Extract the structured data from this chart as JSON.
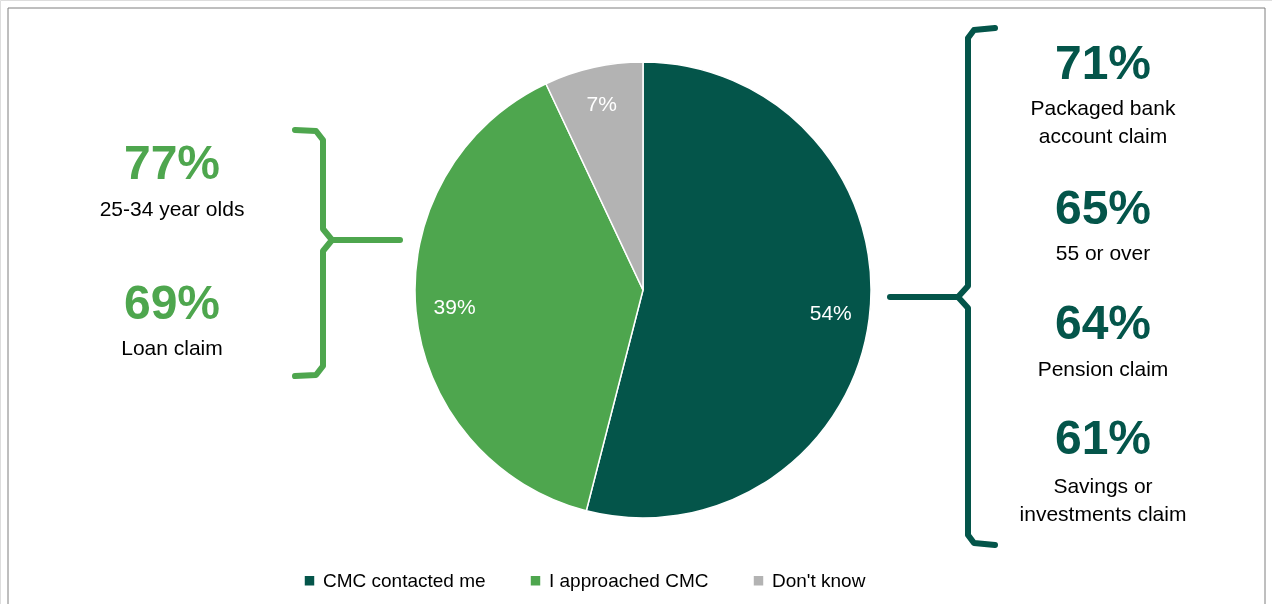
{
  "chart_data": {
    "type": "pie",
    "categories": [
      "CMC contacted me",
      "I approached CMC",
      "Don't know"
    ],
    "values": [
      54,
      39,
      7
    ],
    "value_labels": [
      "54%",
      "39%",
      "7%"
    ],
    "colors": [
      "#04554a",
      "#4ea64e",
      "#b3b3b3"
    ],
    "legend": "bottom",
    "annotations": [
      "77%",
      "25-34 year olds",
      "69%",
      "Loan claim",
      "71%",
      "Packaged bank account claim",
      "65%",
      "55 or over",
      "64%",
      "Pension claim",
      "61%",
      "Savings or investments claim"
    ]
  }
}
